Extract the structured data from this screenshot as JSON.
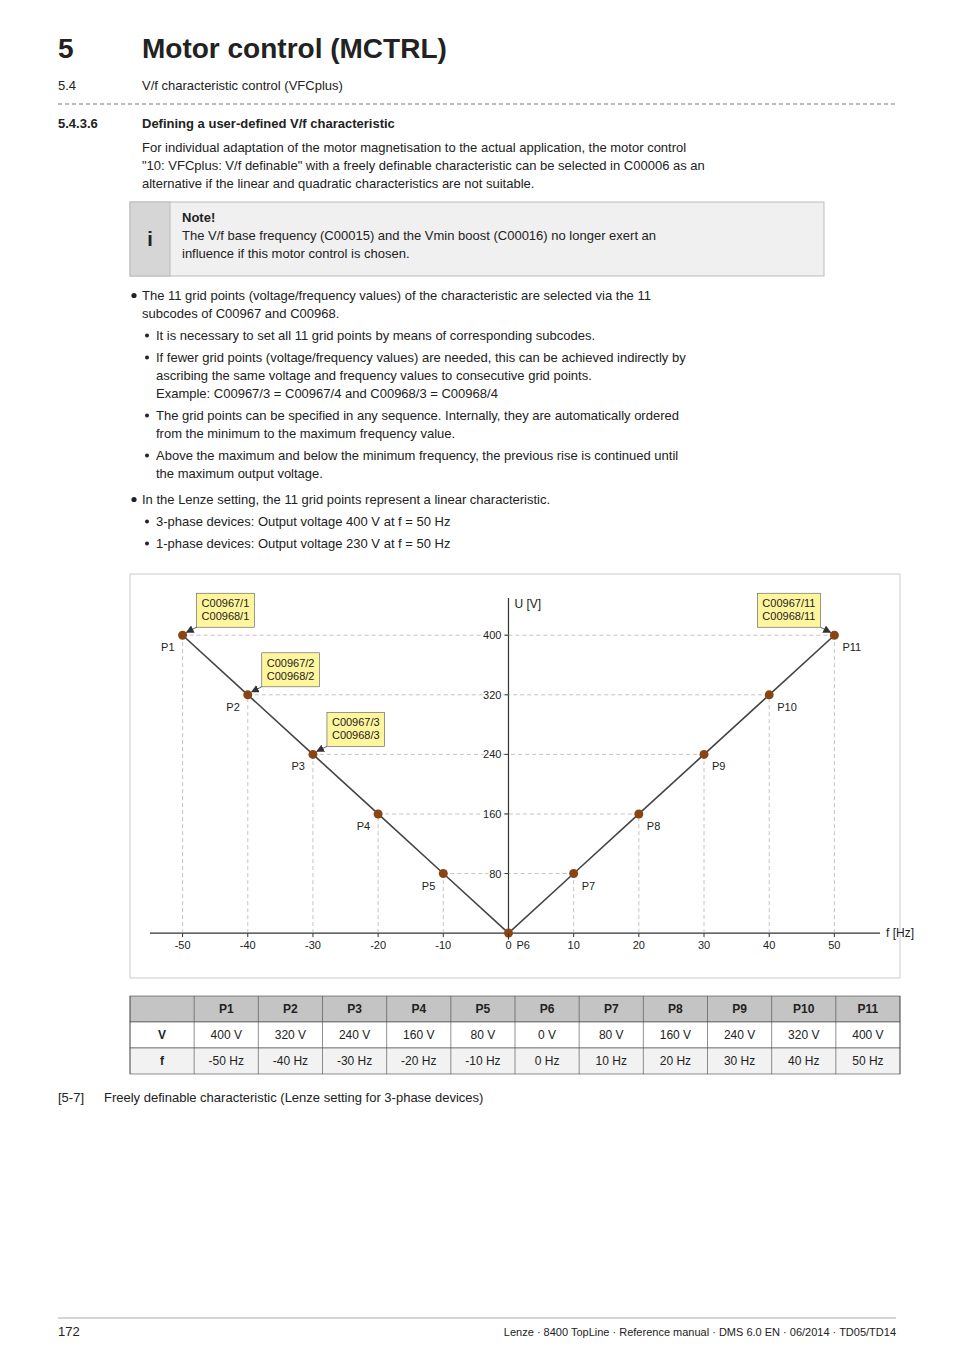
{
  "chart_data": {
    "type": "line",
    "header": [
      {
        "number": "5",
        "text": "Motor control (MCTRL)"
      },
      {
        "number": "5.4",
        "text": "V/f characteristic control (VFCplus)"
      }
    ],
    "section": {
      "number": "5.4.3.6",
      "text": "Defining a user-defined V/f characteristic"
    },
    "paragraph": [
      "For individual adaptation of the motor magnetisation to the actual application, the motor control",
      "\"10: VFCplus: V/f definable\" with a freely definable characteristic can be selected in C00006 as an",
      "alternative if the linear and quadratic characteristics are not suitable."
    ],
    "note": {
      "icon": "i",
      "title": "Note!",
      "lines": [
        "The V/f base frequency (C00015) and the Vmin boost (C00016) no longer exert an",
        "influence if this motor control is chosen."
      ]
    },
    "bullets": [
      {
        "lines": [
          "The 11 grid points (voltage/frequency values) of the characteristic are selected via the 11",
          "subcodes of C00967 and C00968."
        ],
        "items": [
          [
            "It is necessary to set all 11 grid points by means of corresponding subcodes."
          ],
          [
            "If fewer grid points (voltage/frequency values) are needed, this can be achieved indirectly by",
            "ascribing the same voltage and frequency values to consecutive grid points.",
            "Example: C00967/3 = C00967/4 and C00968/3 = C00968/4"
          ],
          [
            "The grid points can be specified in any sequence. Internally, they are automatically ordered",
            "from the minimum to the maximum frequency value."
          ],
          [
            "Above the maximum and below the minimum frequency, the previous rise is continued until",
            "the maximum output voltage."
          ]
        ]
      },
      {
        "lines": [
          "In the Lenze setting, the 11 grid points represent a linear characteristic."
        ],
        "items": [
          [
            "3-phase devices: Output voltage 400 V at f = 50 Hz"
          ],
          [
            "1-phase devices: Output voltage 230 V at f = 50 Hz"
          ]
        ]
      }
    ],
    "x": [
      -50,
      -40,
      -30,
      -20,
      -10,
      0,
      10,
      20,
      30,
      40,
      50
    ],
    "values": [
      400,
      320,
      240,
      160,
      80,
      0,
      80,
      160,
      240,
      320,
      400
    ],
    "point_labels": [
      "P1",
      "P2",
      "P3",
      "P4",
      "P5",
      "P6",
      "P7",
      "P8",
      "P9",
      "P10",
      "P11"
    ],
    "color": "#8B4513",
    "xlabel": "f [Hz]",
    "ylabel": "U [V]",
    "xlim": [
      -55,
      57
    ],
    "ylim": [
      -20,
      450
    ],
    "xticks": [
      -50,
      -40,
      -30,
      -20,
      -10,
      0,
      10,
      20,
      30,
      40,
      50
    ],
    "yticks": [
      80,
      160,
      240,
      320,
      400
    ],
    "annotations": [
      {
        "text": "C00967/1\nC00968/1",
        "x": -50,
        "y": 400
      },
      {
        "text": "C00967/2\nC00968/2",
        "x": -40,
        "y": 320
      },
      {
        "text": "C00967/3\nC00968/3",
        "x": -30,
        "y": 240
      },
      {
        "text": "C00967/11\nC00968/11",
        "x": 50,
        "y": 400
      }
    ],
    "table": {
      "headers": [
        null,
        "P1",
        "P2",
        "P3",
        "P4",
        "P5",
        "P6",
        "P7",
        "P8",
        "P9",
        "P10",
        "P11"
      ],
      "rows": [
        [
          "V",
          "400 V",
          "320 V",
          "240 V",
          "160 V",
          "80 V",
          "0 V",
          "80 V",
          "160 V",
          "240 V",
          "320 V",
          "400 V"
        ],
        [
          "f",
          "-50 Hz",
          "-40 Hz",
          "-30 Hz",
          "-20 Hz",
          "-10 Hz",
          "0 Hz",
          "10 Hz",
          "20 Hz",
          "30 Hz",
          "40 Hz",
          "50 Hz"
        ]
      ]
    },
    "caption": {
      "number": "[5-7]",
      "text": "Freely definable characteristic (Lenze setting for 3-phase devices)"
    },
    "footer": {
      "page": "172",
      "text": "Lenze · 8400 TopLine · Reference manual · DMS 6.0 EN · 06/2014 · TD05/TD14"
    }
  }
}
